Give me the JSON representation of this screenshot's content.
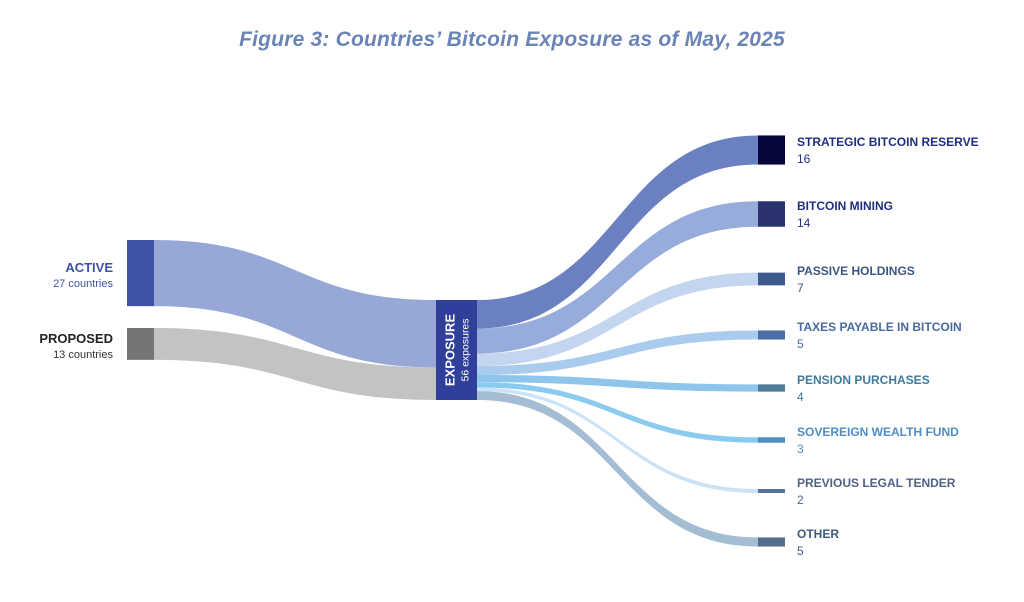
{
  "chart_data": {
    "type": "sankey",
    "title": "Figure 3: Countries’ Bitcoin Exposure as of May, 2025",
    "sources": [
      {
        "name": "ACTIVE",
        "value": 27,
        "sublabel": "27 countries",
        "color": "#3f52a3",
        "link_color": "#97a8d6",
        "label_color": "#3f52a3"
      },
      {
        "name": "PROPOSED",
        "value": 13,
        "sublabel": "13 countries",
        "color": "#757575",
        "link_color": "#c3c3c3",
        "label_color": "#222222"
      }
    ],
    "hub": {
      "name": "EXPOSURE",
      "sublabel": "56 exposures",
      "value": 56,
      "color": "#30409a"
    },
    "targets": [
      {
        "name": "STRATEGIC BITCOIN RESERVE",
        "value": 16,
        "value_label": "16",
        "color": "#05073b",
        "link_color": "#6b80c0",
        "label_color": "#1f2f80"
      },
      {
        "name": "BITCOIN MINING",
        "value": 14,
        "value_label": "14",
        "color": "#2a336d",
        "link_color": "#97acda",
        "label_color": "#1f2f80"
      },
      {
        "name": "PASSIVE HOLDINGS",
        "value": 7,
        "value_label": "7",
        "color": "#3d5a8f",
        "link_color": "#c3d5ef",
        "label_color": "#3a5584"
      },
      {
        "name": "TAXES PAYABLE IN BITCOIN",
        "value": 5,
        "value_label": "5",
        "color": "#4b6ea8",
        "link_color": "#a9cbee",
        "label_color": "#4a69a1"
      },
      {
        "name": "PENSION PURCHASES",
        "value": 4,
        "value_label": "4",
        "color": "#4f7c98",
        "link_color": "#8fc5ea",
        "label_color": "#3f7a9e"
      },
      {
        "name": "SOVEREIGN WEALTH FUND",
        "value": 3,
        "value_label": "3",
        "color": "#4c8cc0",
        "link_color": "#8ccbf0",
        "label_color": "#4f8cc4"
      },
      {
        "name": "PREVIOUS LEGAL TENDER",
        "value": 2,
        "value_label": "2",
        "color": "#52719d",
        "link_color": "#cce2f7",
        "label_color": "#4f6287"
      },
      {
        "name": "OTHER",
        "value": 5,
        "value_label": "5",
        "color": "#546d8c",
        "link_color": "#a5bdd3",
        "label_color": "#3e5a80"
      }
    ]
  }
}
